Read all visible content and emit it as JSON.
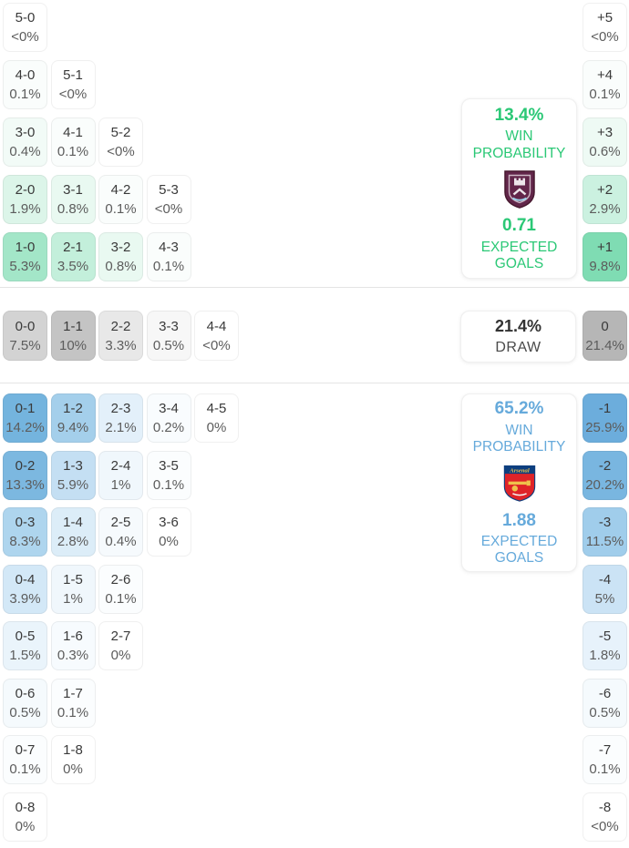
{
  "colors": {
    "home_accent": "#2bc876",
    "away_accent": "#66aadb",
    "divider": "#e4e4e4",
    "score_text": "#3a3a3a",
    "pct_text": "#5c5c5c",
    "draw_value": "#333333",
    "draw_label": "#4a4a4a",
    "home_cell_base": "#7fdcb3",
    "away_cell_base": "#6caddc",
    "draw_cell_base": "#b6b6b6",
    "burnley_claret": "#62264a",
    "arsenal_red": "#df2328",
    "arsenal_navy": "#0d3f7f",
    "arsenal_gold": "#efc24b"
  },
  "cards": {
    "home": {
      "win_pct": "13.4%",
      "win_label": "WIN PROBABILITY",
      "xg": "0.71",
      "xg_label": "EXPECTED GOALS",
      "crest_icon": "burnley-crest"
    },
    "draw": {
      "pct": "21.4%",
      "label": "DRAW"
    },
    "away": {
      "win_pct": "65.2%",
      "win_label": "WIN PROBABILITY",
      "xg": "1.88",
      "xg_label": "EXPECTED GOALS",
      "crest_icon": "arsenal-crest",
      "crest_text": "Arsenal"
    }
  },
  "home_grid": {
    "cells": [
      {
        "row": 1,
        "col": 1,
        "label": "5-0",
        "pct": "<0%",
        "bg": "#ffffff"
      },
      {
        "row": 2,
        "col": 1,
        "label": "4-0",
        "pct": "0.1%",
        "bg": "#fafdfc"
      },
      {
        "row": 2,
        "col": 2,
        "label": "5-1",
        "pct": "<0%",
        "bg": "#ffffff"
      },
      {
        "row": 3,
        "col": 1,
        "label": "3-0",
        "pct": "0.4%",
        "bg": "#f2fbf7"
      },
      {
        "row": 3,
        "col": 2,
        "label": "4-1",
        "pct": "0.1%",
        "bg": "#fafdfc"
      },
      {
        "row": 3,
        "col": 3,
        "label": "5-2",
        "pct": "<0%",
        "bg": "#ffffff"
      },
      {
        "row": 4,
        "col": 1,
        "label": "2-0",
        "pct": "1.9%",
        "bg": "#dcf5e9"
      },
      {
        "row": 4,
        "col": 2,
        "label": "3-1",
        "pct": "0.8%",
        "bg": "#e9f9f1"
      },
      {
        "row": 4,
        "col": 3,
        "label": "4-2",
        "pct": "0.1%",
        "bg": "#fafdfc"
      },
      {
        "row": 4,
        "col": 4,
        "label": "5-3",
        "pct": "<0%",
        "bg": "#ffffff"
      },
      {
        "row": 5,
        "col": 1,
        "label": "1-0",
        "pct": "5.3%",
        "bg": "#a3e6c8"
      },
      {
        "row": 5,
        "col": 2,
        "label": "2-1",
        "pct": "3.5%",
        "bg": "#c3efdb"
      },
      {
        "row": 5,
        "col": 3,
        "label": "3-2",
        "pct": "0.8%",
        "bg": "#e9f9f1"
      },
      {
        "row": 5,
        "col": 4,
        "label": "4-3",
        "pct": "0.1%",
        "bg": "#fafdfc"
      }
    ]
  },
  "draw_grid": {
    "cells": [
      {
        "row": 1,
        "col": 1,
        "label": "0-0",
        "pct": "7.5%",
        "bg": "#d3d3d3"
      },
      {
        "row": 1,
        "col": 2,
        "label": "1-1",
        "pct": "10%",
        "bg": "#c4c4c4"
      },
      {
        "row": 1,
        "col": 3,
        "label": "2-2",
        "pct": "3.3%",
        "bg": "#e8e8e8"
      },
      {
        "row": 1,
        "col": 4,
        "label": "3-3",
        "pct": "0.5%",
        "bg": "#f7f7f7"
      },
      {
        "row": 1,
        "col": 5,
        "label": "4-4",
        "pct": "<0%",
        "bg": "#ffffff"
      }
    ]
  },
  "away_grid": {
    "cells": [
      {
        "row": 1,
        "col": 1,
        "label": "0-1",
        "pct": "14.2%",
        "bg": "#74b4de"
      },
      {
        "row": 1,
        "col": 2,
        "label": "1-2",
        "pct": "9.4%",
        "bg": "#a4cfeb"
      },
      {
        "row": 1,
        "col": 3,
        "label": "2-3",
        "pct": "2.1%",
        "bg": "#e3f0fa"
      },
      {
        "row": 1,
        "col": 4,
        "label": "3-4",
        "pct": "0.2%",
        "bg": "#f9fcfe"
      },
      {
        "row": 1,
        "col": 5,
        "label": "4-5",
        "pct": "0%",
        "bg": "#ffffff"
      },
      {
        "row": 2,
        "col": 1,
        "label": "0-2",
        "pct": "13.3%",
        "bg": "#7cb8e0"
      },
      {
        "row": 2,
        "col": 2,
        "label": "1-3",
        "pct": "5.9%",
        "bg": "#c4dff3"
      },
      {
        "row": 2,
        "col": 3,
        "label": "2-4",
        "pct": "1%",
        "bg": "#f0f7fc"
      },
      {
        "row": 2,
        "col": 4,
        "label": "3-5",
        "pct": "0.1%",
        "bg": "#fbfdfe"
      },
      {
        "row": 3,
        "col": 1,
        "label": "0-3",
        "pct": "8.3%",
        "bg": "#aed5ee"
      },
      {
        "row": 3,
        "col": 2,
        "label": "1-4",
        "pct": "2.8%",
        "bg": "#dcedf8"
      },
      {
        "row": 3,
        "col": 3,
        "label": "2-5",
        "pct": "0.4%",
        "bg": "#f6fafd"
      },
      {
        "row": 3,
        "col": 4,
        "label": "3-6",
        "pct": "0%",
        "bg": "#ffffff"
      },
      {
        "row": 4,
        "col": 1,
        "label": "0-4",
        "pct": "3.9%",
        "bg": "#d3e8f7"
      },
      {
        "row": 4,
        "col": 2,
        "label": "1-5",
        "pct": "1%",
        "bg": "#f0f7fc"
      },
      {
        "row": 4,
        "col": 3,
        "label": "2-6",
        "pct": "0.1%",
        "bg": "#fbfdfe"
      },
      {
        "row": 5,
        "col": 1,
        "label": "0-5",
        "pct": "1.5%",
        "bg": "#eaf4fb"
      },
      {
        "row": 5,
        "col": 2,
        "label": "1-6",
        "pct": "0.3%",
        "bg": "#f7fbfe"
      },
      {
        "row": 5,
        "col": 3,
        "label": "2-7",
        "pct": "0%",
        "bg": "#ffffff"
      },
      {
        "row": 6,
        "col": 1,
        "label": "0-6",
        "pct": "0.5%",
        "bg": "#f5fafd"
      },
      {
        "row": 6,
        "col": 2,
        "label": "1-7",
        "pct": "0.1%",
        "bg": "#fbfdfe"
      },
      {
        "row": 7,
        "col": 1,
        "label": "0-7",
        "pct": "0.1%",
        "bg": "#fbfdfe"
      },
      {
        "row": 7,
        "col": 2,
        "label": "1-8",
        "pct": "0%",
        "bg": "#ffffff"
      },
      {
        "row": 8,
        "col": 1,
        "label": "0-8",
        "pct": "0%",
        "bg": "#ffffff"
      }
    ]
  },
  "goal_diff_home": {
    "cells": [
      {
        "row": 1,
        "col": 1,
        "label": "+5",
        "pct": "<0%",
        "bg": "#ffffff"
      },
      {
        "row": 2,
        "col": 1,
        "label": "+4",
        "pct": "0.1%",
        "bg": "#fafdfc"
      },
      {
        "row": 3,
        "col": 1,
        "label": "+3",
        "pct": "0.6%",
        "bg": "#eefaf4"
      },
      {
        "row": 4,
        "col": 1,
        "label": "+2",
        "pct": "2.9%",
        "bg": "#cbf1e0"
      },
      {
        "row": 5,
        "col": 1,
        "label": "+1",
        "pct": "9.8%",
        "bg": "#7fdcb3"
      }
    ]
  },
  "goal_diff_draw": {
    "cells": [
      {
        "row": 1,
        "col": 1,
        "label": "0",
        "pct": "21.4%",
        "bg": "#b6b6b6"
      }
    ]
  },
  "goal_diff_away": {
    "cells": [
      {
        "row": 1,
        "col": 1,
        "label": "-1",
        "pct": "25.9%",
        "bg": "#6caddc"
      },
      {
        "row": 2,
        "col": 1,
        "label": "-2",
        "pct": "20.2%",
        "bg": "#79b6e0"
      },
      {
        "row": 3,
        "col": 1,
        "label": "-3",
        "pct": "11.5%",
        "bg": "#a0cdeb"
      },
      {
        "row": 4,
        "col": 1,
        "label": "-4",
        "pct": "5%",
        "bg": "#cbe3f5"
      },
      {
        "row": 5,
        "col": 1,
        "label": "-5",
        "pct": "1.8%",
        "bg": "#e7f2fb"
      },
      {
        "row": 6,
        "col": 1,
        "label": "-6",
        "pct": "0.5%",
        "bg": "#f5fafd"
      },
      {
        "row": 7,
        "col": 1,
        "label": "-7",
        "pct": "0.1%",
        "bg": "#fbfdfe"
      },
      {
        "row": 8,
        "col": 1,
        "label": "-8",
        "pct": "<0%",
        "bg": "#ffffff"
      }
    ]
  }
}
